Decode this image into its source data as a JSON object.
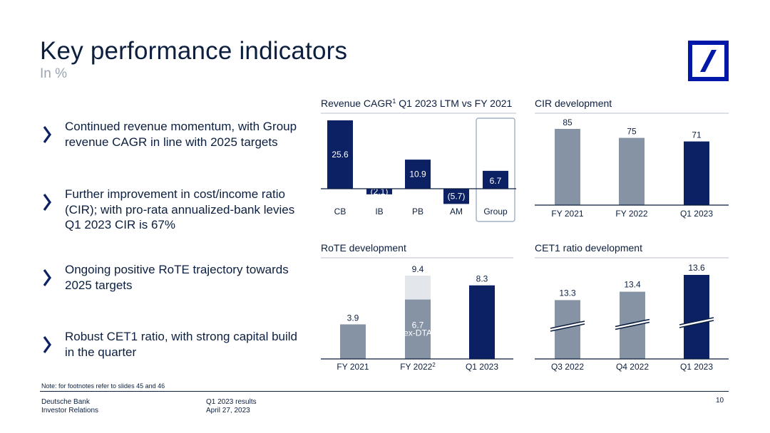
{
  "header": {
    "title": "Key performance indicators",
    "subtitle": "In %"
  },
  "colors": {
    "navy": "#0c2164",
    "gray": "#8593a5",
    "lightgray": "#e3e6ea",
    "text": "#0c1f3f",
    "logo": "#0018a8"
  },
  "bullets": [
    {
      "text": "Continued revenue momentum, with Group revenue CAGR in line with 2025 targets"
    },
    {
      "text": "Further improvement in cost/income ratio (CIR); with pro-rata annualized-bank levies Q1 2023 CIR is 67%"
    },
    {
      "text": "Ongoing positive RoTE trajectory towards 2025 targets"
    },
    {
      "text": "Robust CET1 ratio, with strong capital build in the quarter"
    }
  ],
  "chart_data": [
    {
      "id": "revenue",
      "type": "bar",
      "title": "Revenue CAGR",
      "title_sup": "1",
      "title_rest": " Q1 2023 LTM vs FY 2021",
      "categories": [
        "CB",
        "IB",
        "PB",
        "AM",
        "Group"
      ],
      "values": [
        25.6,
        -2.1,
        10.9,
        -5.7,
        6.7
      ],
      "value_labels": [
        "25.6",
        "(2.1)",
        "10.9",
        "(5.7)",
        "6.7"
      ],
      "highlight": "Group"
    },
    {
      "id": "cir",
      "type": "bar",
      "title": "CIR development",
      "categories": [
        "FY 2021",
        "FY 2022",
        "Q1 2023"
      ],
      "values": [
        85,
        75,
        71
      ],
      "value_labels": [
        "85",
        "75",
        "71"
      ]
    },
    {
      "id": "rote",
      "type": "bar",
      "title": "RoTE development",
      "categories": [
        "FY 2021",
        "FY 2022",
        "Q1 2023"
      ],
      "category_sup": [
        "",
        "2",
        ""
      ],
      "values": [
        3.9,
        9.4,
        8.3
      ],
      "value_labels": [
        "3.9",
        "9.4",
        "8.3"
      ],
      "inner_values": [
        null,
        6.7,
        null
      ],
      "inner_labels": [
        "",
        "6.7",
        ""
      ],
      "inner_sublabels": [
        "",
        "ex-DTA",
        ""
      ]
    },
    {
      "id": "cet1",
      "type": "bar",
      "title": "CET1 ratio development",
      "categories": [
        "Q3 2022",
        "Q4 2022",
        "Q1 2023"
      ],
      "values": [
        13.3,
        13.4,
        13.6
      ],
      "value_labels": [
        "13.3",
        "13.4",
        "13.6"
      ],
      "axis_break": true
    }
  ],
  "footer": {
    "note": "Note: for footnotes refer to slides 45 and 46",
    "company": "Deutsche Bank",
    "department": "Investor Relations",
    "report": "Q1 2023 results",
    "date": "April 27, 2023",
    "page": "10"
  }
}
